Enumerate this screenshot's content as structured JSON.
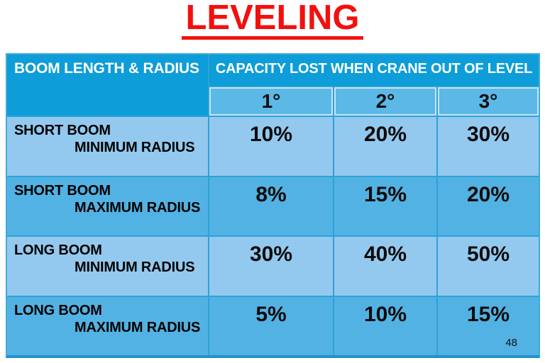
{
  "title": "LEVELING",
  "page_number": "48",
  "colors": {
    "title_red": "#f2100f",
    "header_blue": "#0d9dd9",
    "subheader_blue": "#5cb8e6",
    "row_light_blue": "#93c9ee",
    "row_dark_blue": "#52b2e3",
    "grid_line_blue": "#2fa2d8",
    "header_text": "#ffffff",
    "body_text": "#000000"
  },
  "table": {
    "corner_header": "BOOM LENGTH & RADIUS",
    "span_header": "CAPACITY LOST WHEN CRANE OUT OF LEVEL",
    "degree_headers": [
      "1°",
      "2°",
      "3°"
    ],
    "rows": [
      {
        "label_line1": "SHORT BOOM",
        "label_line2": "MINIMUM RADIUS",
        "values": [
          "10%",
          "20%",
          "30%"
        ]
      },
      {
        "label_line1": "SHORT BOOM",
        "label_line2": "MAXIMUM RADIUS",
        "values": [
          "8%",
          "15%",
          "20%"
        ]
      },
      {
        "label_line1": "LONG BOOM",
        "label_line2": "MINIMUM RADIUS",
        "values": [
          "30%",
          "40%",
          "50%"
        ]
      },
      {
        "label_line1": "LONG BOOM",
        "label_line2": "MAXIMUM RADIUS",
        "values": [
          "5%",
          "10%",
          "15%"
        ]
      }
    ]
  }
}
